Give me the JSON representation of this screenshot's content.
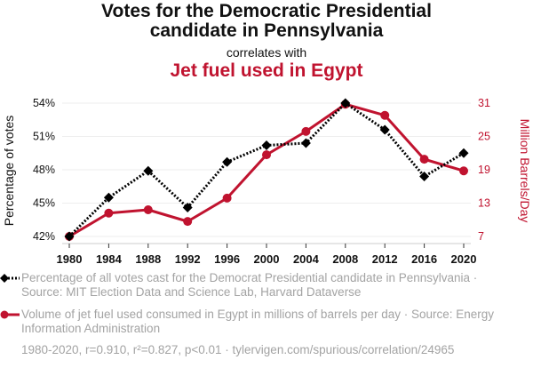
{
  "header": {
    "title_line1": "Votes for the Democratic Presidential",
    "title_line2": "candidate in Pennsylvania",
    "subtitle": "correlates with",
    "title2": "Jet fuel used in Egypt"
  },
  "colors": {
    "series1": "#000000",
    "series2": "#c0132f",
    "grid": "#eeeeee",
    "muted_text": "#a3a3a3"
  },
  "chart_data": {
    "type": "line",
    "title": "Votes for the Democratic Presidential candidate in Pennsylvania correlates with Jet fuel used in Egypt",
    "x": [
      1980,
      1984,
      1988,
      1992,
      1996,
      2000,
      2004,
      2008,
      2012,
      2016,
      2020
    ],
    "x_tick_labels": [
      "1980",
      "1984",
      "1988",
      "1992",
      "1996",
      "2000",
      "2004",
      "2008",
      "2012",
      "2016",
      "2020"
    ],
    "grid": true,
    "series": [
      {
        "name": "Percentage of all votes cast for the Democrat Presidential candidate in Pennsylvania",
        "axis": "left",
        "marker": "diamond",
        "line_style": "dotted",
        "color": "#000000",
        "values": [
          42.0,
          45.5,
          47.9,
          44.6,
          48.7,
          50.2,
          50.4,
          54.0,
          51.6,
          47.4,
          49.5
        ]
      },
      {
        "name": "Volume of jet fuel used consumed in Egypt in millions of barrels per day",
        "axis": "right",
        "marker": "circle",
        "line_style": "solid",
        "color": "#c0132f",
        "values": [
          7.0,
          11.2,
          11.8,
          9.7,
          13.9,
          21.7,
          25.9,
          30.8,
          28.8,
          20.9,
          18.8
        ]
      }
    ],
    "y_left": {
      "label": "Percentage of votes",
      "ticks": [
        42,
        45,
        48,
        51,
        54
      ],
      "tick_labels": [
        "42%",
        "45%",
        "48%",
        "51%",
        "54%"
      ],
      "range": [
        42,
        54
      ]
    },
    "y_right": {
      "label": "Million Barrels/Day",
      "ticks": [
        7,
        13,
        19,
        25,
        31
      ],
      "tick_labels": [
        "7",
        "13",
        "19",
        "25",
        "31"
      ],
      "range": [
        7,
        31
      ]
    },
    "legend_placement": "bottom"
  },
  "legend": {
    "item1": "Percentage of all votes cast for the Democrat Presidential candidate in Pennsylvania · Source: MIT Election Data and Science Lab, Harvard Dataverse",
    "item2": "Volume of jet fuel used consumed in Egypt in millions of barrels per day · Source: Energy Information Administration"
  },
  "footer": {
    "stats": "1980-2020, r=0.910, r²=0.827, p<0.01 · tylervigen.com/spurious/correlation/24965"
  }
}
